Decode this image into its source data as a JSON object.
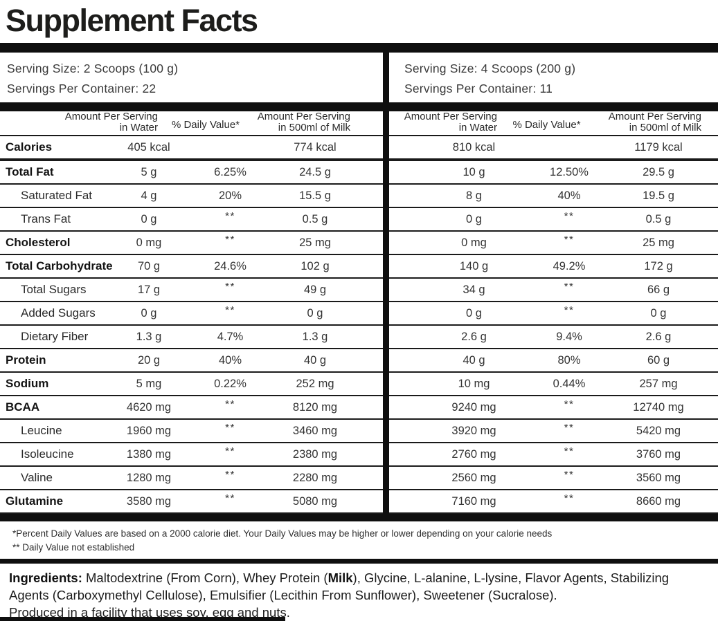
{
  "title": "Supplement Facts",
  "left_panel": {
    "serving_size": "Serving Size: 2 Scoops (100 g)",
    "servings_per_container": "Servings Per Container: 22"
  },
  "right_panel": {
    "serving_size": "Serving Size: 4 Scoops (200 g)",
    "servings_per_container": "Servings Per Container: 11"
  },
  "table": {
    "headers": {
      "amount_water": [
        "Amount Per Serving",
        "in Water"
      ],
      "daily_value": "% Daily Value*",
      "amount_milk": [
        "Amount Per Serving",
        "in 500ml of Milk"
      ]
    },
    "rows": [
      {
        "label": "Calories",
        "bold": true,
        "indent": false,
        "thick_bottom": true,
        "left": [
          "405 kcal",
          "",
          "774 kcal"
        ],
        "right": [
          "810 kcal",
          "",
          "1179 kcal"
        ]
      },
      {
        "label": "Total Fat",
        "bold": true,
        "indent": false,
        "left": [
          "5 g",
          "6.25%",
          "24.5 g"
        ],
        "right": [
          "10 g",
          "12.50%",
          "29.5 g"
        ]
      },
      {
        "label": "Saturated Fat",
        "bold": false,
        "indent": true,
        "left": [
          "4 g",
          "20%",
          "15.5 g"
        ],
        "right": [
          "8 g",
          "40%",
          "19.5 g"
        ]
      },
      {
        "label": "Trans Fat",
        "bold": false,
        "indent": true,
        "left": [
          "0 g",
          "**",
          "0.5 g"
        ],
        "right": [
          "0 g",
          "**",
          "0.5 g"
        ]
      },
      {
        "label": "Cholesterol",
        "bold": true,
        "indent": false,
        "left": [
          "0 mg",
          "**",
          "25 mg"
        ],
        "right": [
          "0 mg",
          "**",
          "25 mg"
        ]
      },
      {
        "label": "Total Carbohydrate",
        "bold": true,
        "indent": false,
        "left": [
          "70 g",
          "24.6%",
          "102 g"
        ],
        "right": [
          "140 g",
          "49.2%",
          "172 g"
        ]
      },
      {
        "label": "Total Sugars",
        "bold": false,
        "indent": true,
        "left": [
          "17 g",
          "**",
          "49 g"
        ],
        "right": [
          "34 g",
          "**",
          "66 g"
        ]
      },
      {
        "label": "Added Sugars",
        "bold": false,
        "indent": true,
        "left": [
          "0 g",
          "**",
          "0 g"
        ],
        "right": [
          "0 g",
          "**",
          "0 g"
        ]
      },
      {
        "label": "Dietary Fiber",
        "bold": false,
        "indent": true,
        "left": [
          "1.3 g",
          "4.7%",
          "1.3 g"
        ],
        "right": [
          "2.6 g",
          "9.4%",
          "2.6 g"
        ]
      },
      {
        "label": "Protein",
        "bold": true,
        "indent": false,
        "left": [
          "20 g",
          "40%",
          "40 g"
        ],
        "right": [
          "40 g",
          "80%",
          "60 g"
        ]
      },
      {
        "label": "Sodium",
        "bold": true,
        "indent": false,
        "left": [
          "5 mg",
          "0.22%",
          "252 mg"
        ],
        "right": [
          "10 mg",
          "0.44%",
          "257 mg"
        ]
      },
      {
        "label": "BCAA",
        "bold": true,
        "indent": false,
        "left": [
          "4620 mg",
          "**",
          "8120 mg"
        ],
        "right": [
          "9240 mg",
          "**",
          "12740 mg"
        ]
      },
      {
        "label": "Leucine",
        "bold": false,
        "indent": true,
        "left": [
          "1960 mg",
          "**",
          "3460 mg"
        ],
        "right": [
          "3920 mg",
          "**",
          "5420 mg"
        ]
      },
      {
        "label": "Isoleucine",
        "bold": false,
        "indent": true,
        "left": [
          "1380 mg",
          "**",
          "2380 mg"
        ],
        "right": [
          "2760 mg",
          "**",
          "3760 mg"
        ]
      },
      {
        "label": "Valine",
        "bold": false,
        "indent": true,
        "left": [
          "1280 mg",
          "**",
          "2280 mg"
        ],
        "right": [
          "2560 mg",
          "**",
          "3560 mg"
        ]
      },
      {
        "label": "Glutamine",
        "bold": true,
        "indent": false,
        "left": [
          "3580 mg",
          "**",
          "5080 mg"
        ],
        "right": [
          "7160 mg",
          "**",
          "8660 mg"
        ]
      }
    ]
  },
  "footnotes": [
    "*Percent Daily Values are based on a 2000 calorie diet. Your Daily Values may be higher or lower depending on your calorie needs",
    "** Daily Value not established"
  ],
  "ingredients": {
    "segments": [
      {
        "text": "Ingredients: ",
        "bold": true
      },
      {
        "text": "Maltodextrine (From Corn), Whey Protein (",
        "bold": false
      },
      {
        "text": "Milk",
        "bold": true
      },
      {
        "text": "), Glycine, L-alanine, L-lysine, Flavor Agents, Stabilizing Agents (Carboxymethyl Cellulose), Emulsifier (Lecithin From Sunflower), Sweetener (Sucralose).",
        "bold": false
      }
    ],
    "facility": "Produced in a facility that uses soy, egg and nuts."
  },
  "colors": {
    "bar": "#0f0f0f",
    "text": "#2b2b2b",
    "title": "#1d1d1b"
  }
}
